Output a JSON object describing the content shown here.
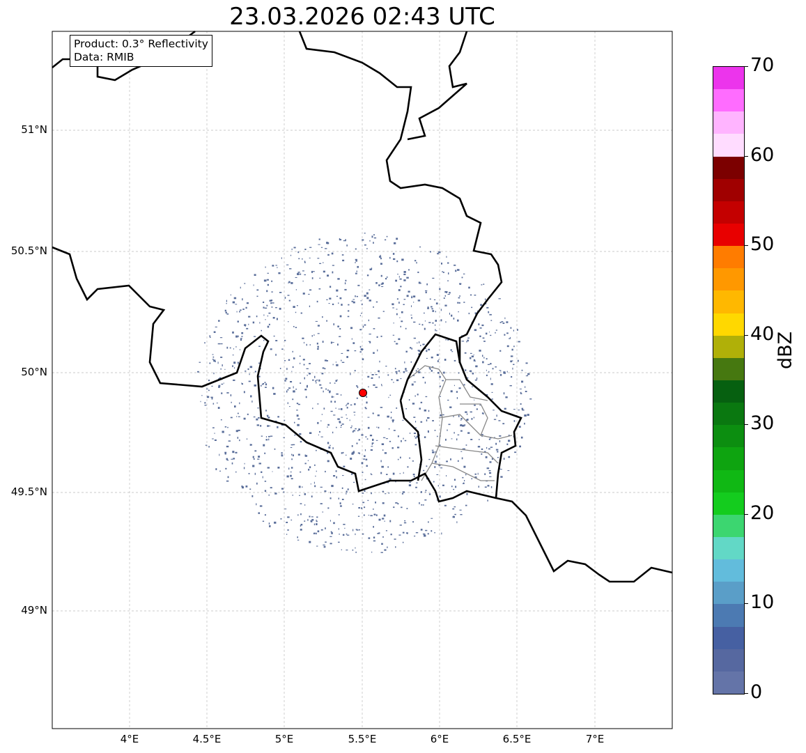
{
  "title": "23.03.2026 02:43 UTC",
  "info": {
    "product": "Product: 0.3° Reflectivity",
    "data": "Data: RMIB"
  },
  "axes": {
    "lon_ticks": [
      "4°E",
      "4.5°E",
      "5°E",
      "5.5°E",
      "6°E",
      "6.5°E",
      "7°E"
    ],
    "lat_ticks": [
      "51°N",
      "50.5°N",
      "50°N",
      "49.5°N",
      "49°N"
    ]
  },
  "radar_site": {
    "name": "radar",
    "lon": 5.5,
    "lat": 49.92,
    "color": "#ff0000"
  },
  "echo_color": "#5a6e9a",
  "colorbar": {
    "label": "dBZ",
    "ticks": [
      "0",
      "10",
      "20",
      "30",
      "40",
      "50",
      "60",
      "70"
    ],
    "min": 0,
    "max": 70,
    "step": 2.5,
    "colors": [
      "#6474a8",
      "#5668a0",
      "#4660a2",
      "#4c7ab2",
      "#5a9ec8",
      "#62bcdc",
      "#62d8c6",
      "#3cd670",
      "#14cc1e",
      "#10b814",
      "#0ea410",
      "#0c8e10",
      "#0a7810",
      "#066010",
      "#467810",
      "#b0b008",
      "#ffd800",
      "#ffb800",
      "#ff9800",
      "#ff7c00",
      "#e80000",
      "#c40000",
      "#a00000",
      "#7c0000",
      "#ffdcff",
      "#ffb4ff",
      "#ff6cff",
      "#ec34ec"
    ]
  }
}
